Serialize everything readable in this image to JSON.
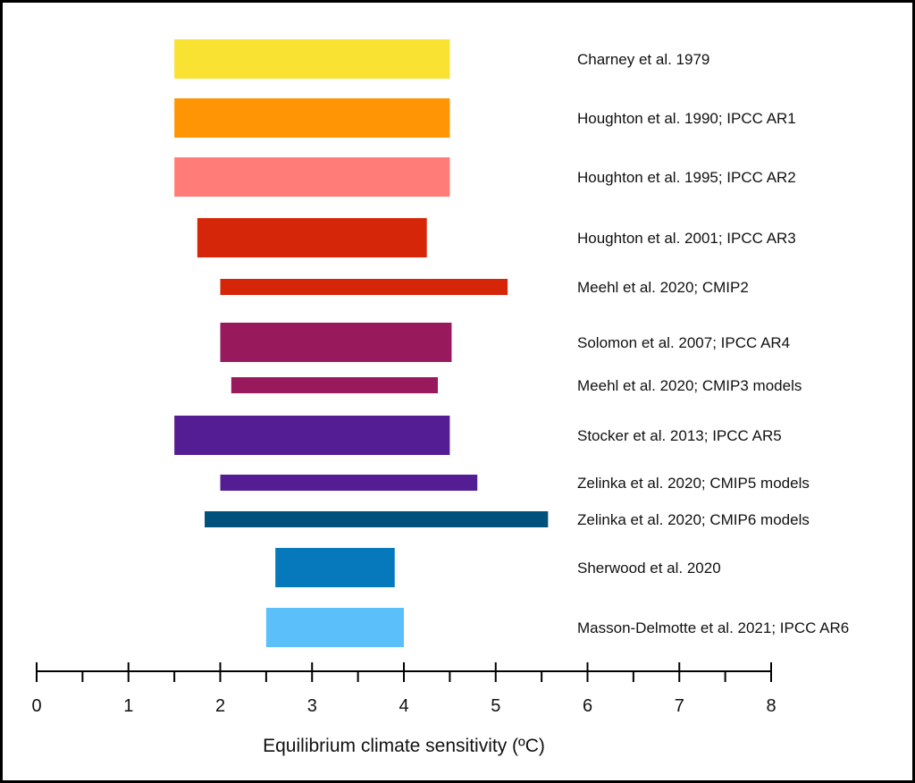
{
  "chart_data": {
    "type": "bar",
    "orientation": "horizontal-range",
    "title": "",
    "xlabel": "Equilibrium climate sensitivity (ºC)",
    "xlim": [
      0,
      8
    ],
    "xticks": [
      0,
      1,
      2,
      3,
      4,
      5,
      6,
      7,
      8
    ],
    "minor_tick_step": 0.5,
    "grid": false,
    "series": [
      {
        "label": "Charney et al. 1979",
        "low": 1.5,
        "high": 4.5,
        "color": "#FAE232",
        "thickness": "thick"
      },
      {
        "label": "Houghton et al. 1990; IPCC AR1",
        "low": 1.5,
        "high": 4.5,
        "color": "#FF9505",
        "thickness": "thick"
      },
      {
        "label": "Houghton et al. 1995; IPCC AR2",
        "low": 1.5,
        "high": 4.5,
        "color": "#FF7C78",
        "thickness": "thick"
      },
      {
        "label": "Houghton et al. 2001; IPCC AR3",
        "low": 1.75,
        "high": 4.25,
        "color": "#D6260A",
        "thickness": "thick"
      },
      {
        "label": "Meehl et al. 2020; CMIP2",
        "low": 2.0,
        "high": 5.13,
        "color": "#D6260A",
        "thickness": "thin"
      },
      {
        "label": "Solomon et al. 2007; IPCC AR4",
        "low": 2.0,
        "high": 4.52,
        "color": "#991A5C",
        "thickness": "thick"
      },
      {
        "label": "Meehl et al. 2020; CMIP3 models",
        "low": 2.12,
        "high": 4.37,
        "color": "#991A5C",
        "thickness": "thin"
      },
      {
        "label": "Stocker et al. 2013; IPCC AR5",
        "low": 1.5,
        "high": 4.5,
        "color": "#541D94",
        "thickness": "thick"
      },
      {
        "label": "Zelinka et al. 2020; CMIP5 models",
        "low": 2.0,
        "high": 4.8,
        "color": "#541D94",
        "thickness": "thin"
      },
      {
        "label": "Zelinka et al. 2020; CMIP6 models",
        "low": 1.83,
        "high": 5.57,
        "color": "#00527C",
        "thickness": "thin"
      },
      {
        "label": "Sherwood et al. 2020",
        "low": 2.6,
        "high": 3.9,
        "color": "#0679BD",
        "thickness": "thick"
      },
      {
        "label": "Masson-Delmotte et al. 2021; IPCC AR6",
        "low": 2.5,
        "high": 4.0,
        "color": "#5BC0FA",
        "thickness": "thick"
      }
    ]
  }
}
